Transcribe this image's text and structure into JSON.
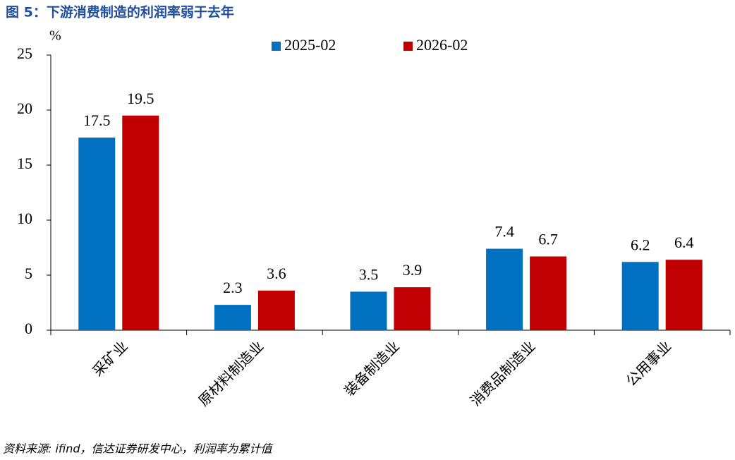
{
  "chart_data": {
    "type": "bar",
    "title": "图 5：下游消费制造的利润率弱于去年",
    "y_unit": "%",
    "source": "资料来源: ifind，信达证券研发中心，利润率为累计值",
    "categories": [
      "采矿业",
      "原材料制造业",
      "装备制造业",
      "消费品制造业",
      "公用事业"
    ],
    "series": [
      {
        "name": "2025-02",
        "color": "#0070c0",
        "values": [
          17.5,
          2.3,
          3.5,
          7.4,
          6.2
        ]
      },
      {
        "name": "2026-02",
        "color": "#c00000",
        "values": [
          19.5,
          3.6,
          3.9,
          6.7,
          6.4
        ]
      }
    ],
    "ylim": [
      0,
      25
    ],
    "yticks": [
      0,
      5,
      10,
      15,
      20,
      25
    ],
    "legend": "top"
  }
}
